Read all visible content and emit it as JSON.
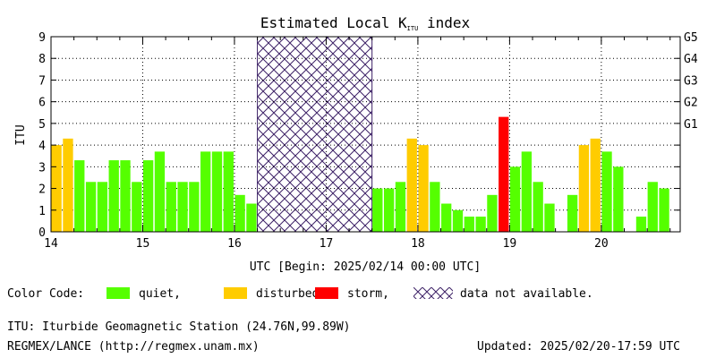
{
  "chart_data": {
    "type": "bar",
    "title": "Estimated Local K",
    "title_sub": "ITU",
    "title_suffix": " index",
    "ylabel": "ITU",
    "xlabel": "UTC [Begin: 2025/02/14 00:00 UTC]",
    "ylim": [
      0,
      9
    ],
    "xlim_days": [
      14,
      20.86
    ],
    "x_tick_labels": [
      "14",
      "15",
      "16",
      "17",
      "18",
      "19",
      "20"
    ],
    "y_tick_labels": [
      "0",
      "1",
      "2",
      "3",
      "4",
      "5",
      "6",
      "7",
      "8",
      "9"
    ],
    "right_axis_labels": [
      {
        "level": 5,
        "label": "G1"
      },
      {
        "level": 6,
        "label": "G2"
      },
      {
        "level": 7,
        "label": "G3"
      },
      {
        "level": 8,
        "label": "G4"
      },
      {
        "level": 9,
        "label": "G5"
      }
    ],
    "bins_per_day": 8,
    "bars": [
      {
        "day": 14,
        "bin": 0,
        "value": 4.0,
        "status": "disturbed"
      },
      {
        "day": 14,
        "bin": 1,
        "value": 4.3,
        "status": "disturbed"
      },
      {
        "day": 14,
        "bin": 2,
        "value": 3.3,
        "status": "quiet"
      },
      {
        "day": 14,
        "bin": 3,
        "value": 2.3,
        "status": "quiet"
      },
      {
        "day": 14,
        "bin": 4,
        "value": 2.3,
        "status": "quiet"
      },
      {
        "day": 14,
        "bin": 5,
        "value": 3.3,
        "status": "quiet"
      },
      {
        "day": 14,
        "bin": 6,
        "value": 3.3,
        "status": "quiet"
      },
      {
        "day": 14,
        "bin": 7,
        "value": 2.3,
        "status": "quiet"
      },
      {
        "day": 15,
        "bin": 0,
        "value": 3.3,
        "status": "quiet"
      },
      {
        "day": 15,
        "bin": 1,
        "value": 3.7,
        "status": "quiet"
      },
      {
        "day": 15,
        "bin": 2,
        "value": 2.3,
        "status": "quiet"
      },
      {
        "day": 15,
        "bin": 3,
        "value": 2.3,
        "status": "quiet"
      },
      {
        "day": 15,
        "bin": 4,
        "value": 2.3,
        "status": "quiet"
      },
      {
        "day": 15,
        "bin": 5,
        "value": 3.7,
        "status": "quiet"
      },
      {
        "day": 15,
        "bin": 6,
        "value": 3.7,
        "status": "quiet"
      },
      {
        "day": 15,
        "bin": 7,
        "value": 3.7,
        "status": "quiet"
      },
      {
        "day": 16,
        "bin": 0,
        "value": 1.7,
        "status": "quiet"
      },
      {
        "day": 16,
        "bin": 1,
        "value": 1.3,
        "status": "quiet"
      },
      {
        "day": 17,
        "bin": 4,
        "value": 2.0,
        "status": "quiet"
      },
      {
        "day": 17,
        "bin": 5,
        "value": 2.0,
        "status": "quiet"
      },
      {
        "day": 17,
        "bin": 6,
        "value": 2.3,
        "status": "quiet"
      },
      {
        "day": 17,
        "bin": 7,
        "value": 4.3,
        "status": "disturbed"
      },
      {
        "day": 18,
        "bin": 0,
        "value": 4.0,
        "status": "disturbed"
      },
      {
        "day": 18,
        "bin": 1,
        "value": 2.3,
        "status": "quiet"
      },
      {
        "day": 18,
        "bin": 2,
        "value": 1.3,
        "status": "quiet"
      },
      {
        "day": 18,
        "bin": 3,
        "value": 1.0,
        "status": "quiet"
      },
      {
        "day": 18,
        "bin": 4,
        "value": 0.7,
        "status": "quiet"
      },
      {
        "day": 18,
        "bin": 5,
        "value": 0.7,
        "status": "quiet"
      },
      {
        "day": 18,
        "bin": 6,
        "value": 1.7,
        "status": "quiet"
      },
      {
        "day": 18,
        "bin": 7,
        "value": 5.3,
        "status": "storm"
      },
      {
        "day": 19,
        "bin": 0,
        "value": 3.0,
        "status": "quiet"
      },
      {
        "day": 19,
        "bin": 1,
        "value": 3.7,
        "status": "quiet"
      },
      {
        "day": 19,
        "bin": 2,
        "value": 2.3,
        "status": "quiet"
      },
      {
        "day": 19,
        "bin": 3,
        "value": 1.3,
        "status": "quiet"
      },
      {
        "day": 19,
        "bin": 4,
        "value": 0.0,
        "status": "quiet"
      },
      {
        "day": 19,
        "bin": 5,
        "value": 1.7,
        "status": "quiet"
      },
      {
        "day": 19,
        "bin": 6,
        "value": 4.0,
        "status": "disturbed"
      },
      {
        "day": 19,
        "bin": 7,
        "value": 4.3,
        "status": "disturbed"
      },
      {
        "day": 20,
        "bin": 0,
        "value": 3.7,
        "status": "quiet"
      },
      {
        "day": 20,
        "bin": 1,
        "value": 3.0,
        "status": "quiet"
      },
      {
        "day": 20,
        "bin": 2,
        "value": 0.0,
        "status": "quiet"
      },
      {
        "day": 20,
        "bin": 3,
        "value": 0.7,
        "status": "quiet"
      },
      {
        "day": 20,
        "bin": 4,
        "value": 2.3,
        "status": "quiet"
      },
      {
        "day": 20,
        "bin": 5,
        "value": 2.0,
        "status": "quiet"
      }
    ],
    "unavailable_range_days": [
      16.25,
      17.5
    ],
    "grid": true,
    "colors": {
      "quiet": "#55ff00",
      "disturbed": "#ffcc00",
      "storm": "#ff0000",
      "unavailable_hatch": "#3d2166"
    }
  },
  "legend": {
    "title": "Color Code:",
    "quiet": "quiet,",
    "disturbed": "disturbed,",
    "storm": "storm,",
    "na": "data not available."
  },
  "footer": {
    "station": "ITU: Iturbide Geomagnetic Station (24.76N,99.89W)",
    "source": "REGMEX/LANCE (http://regmex.unam.mx)",
    "updated": "Updated: 2025/02/20-17:59 UTC"
  }
}
